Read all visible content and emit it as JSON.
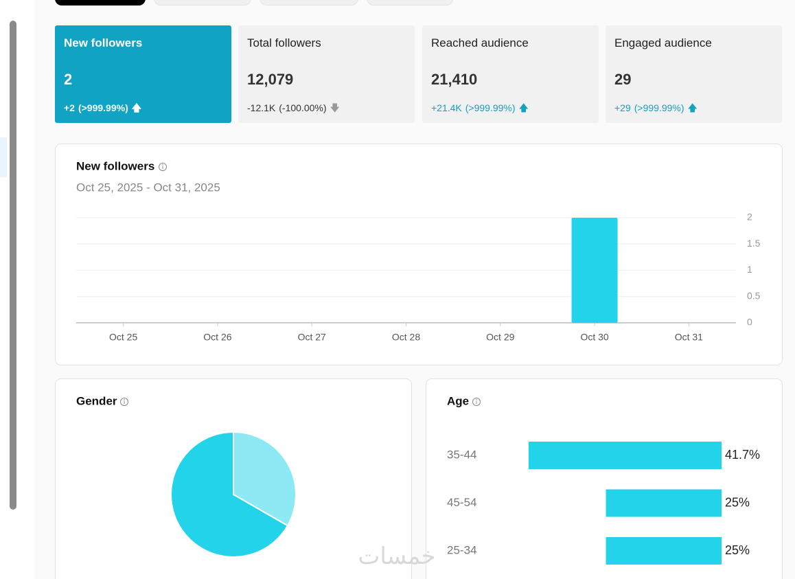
{
  "cards": [
    {
      "label": "New followers",
      "value": "2",
      "change": "+2",
      "percent": "(>999.99%)"
    },
    {
      "label": "Total followers",
      "value": "12,079",
      "change": "-12.1K",
      "percent": "(-100.00%)"
    },
    {
      "label": "Reached audience",
      "value": "21,410",
      "change": "+21.4K",
      "percent": "(>999.99%)"
    },
    {
      "label": "Engaged audience",
      "value": "29",
      "change": "+29",
      "percent": "(>999.99%)"
    }
  ],
  "chart_data": [
    {
      "type": "bar",
      "title": "New followers",
      "subtitle": "Oct 25, 2025 - Oct 31, 2025",
      "categories": [
        "Oct 25",
        "Oct 26",
        "Oct 27",
        "Oct 28",
        "Oct 29",
        "Oct 30",
        "Oct 31"
      ],
      "values": [
        0,
        0,
        0,
        0,
        0,
        2,
        0
      ],
      "color": "#22d3ea",
      "ylim": [
        0,
        2
      ],
      "yticks": [
        0,
        0.5,
        1,
        1.5,
        2
      ],
      "grid": true
    },
    {
      "type": "pie",
      "title": "Gender",
      "series": [
        {
          "color": "#8deaf5",
          "values": [
            33.3
          ]
        },
        {
          "color": "#22d3ea",
          "values": [
            66.7
          ]
        }
      ]
    },
    {
      "type": "hbar",
      "title": "Age",
      "categories": [
        "35-44",
        "45-54",
        "25-34"
      ],
      "values": [
        41.7,
        25,
        25
      ],
      "value_labels": [
        "41.7%",
        "25%",
        "25%"
      ],
      "color": "#22d3ea"
    }
  ],
  "watermark": "خمسات"
}
